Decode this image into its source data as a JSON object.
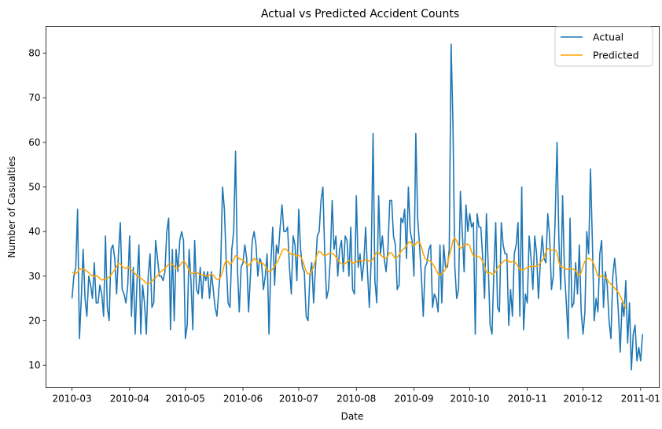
{
  "chart_data": {
    "type": "line",
    "title": "Actual vs Predicted Accident Counts",
    "xlabel": "Date",
    "ylabel": "Number of Casualties",
    "x_start": "2010-03-01",
    "xlim": [
      "2010-02-15",
      "2011-01-11"
    ],
    "ylim": [
      5,
      86
    ],
    "x_ticks": [
      "2010-03",
      "2010-04",
      "2010-05",
      "2010-06",
      "2010-07",
      "2010-08",
      "2010-09",
      "2010-10",
      "2010-11",
      "2010-12",
      "2011-01"
    ],
    "y_ticks": [
      10,
      20,
      30,
      40,
      50,
      60,
      70,
      80
    ],
    "grid": false,
    "legend_position": "top-right",
    "series": [
      {
        "name": "Actual",
        "color": "#1f77b4",
        "values": [
          25,
          30,
          32,
          45,
          16,
          25,
          36,
          25,
          21,
          30,
          28,
          25,
          33,
          24,
          24,
          28,
          26,
          21,
          39,
          23,
          20,
          36,
          37,
          34,
          26,
          35,
          42,
          27,
          26,
          24,
          28,
          39,
          21,
          32,
          17,
          29,
          37,
          17,
          28,
          24,
          17,
          30,
          35,
          23,
          24,
          38,
          34,
          30,
          30,
          29,
          31,
          40,
          43,
          18,
          36,
          20,
          36,
          31,
          38,
          40,
          38,
          16,
          19,
          36,
          29,
          18,
          38,
          27,
          26,
          32,
          25,
          31,
          29,
          31,
          25,
          31,
          27,
          23,
          21,
          27,
          32,
          50,
          45,
          33,
          24,
          23,
          36,
          40,
          58,
          32,
          22,
          32,
          33,
          37,
          34,
          22,
          30,
          38,
          40,
          37,
          30,
          34,
          33,
          27,
          30,
          35,
          17,
          33,
          41,
          28,
          37,
          35,
          41,
          46,
          40,
          40,
          41,
          32,
          26,
          39,
          37,
          29,
          45,
          36,
          32,
          31,
          21,
          20,
          30,
          33,
          24,
          32,
          39,
          40,
          47,
          50,
          35,
          25,
          27,
          34,
          47,
          36,
          39,
          30,
          36,
          38,
          31,
          39,
          38,
          30,
          41,
          27,
          26,
          48,
          32,
          35,
          29,
          33,
          41,
          31,
          23,
          34,
          62,
          29,
          24,
          48,
          35,
          39,
          34,
          31,
          36,
          47,
          47,
          39,
          37,
          27,
          28,
          43,
          42,
          45,
          34,
          50,
          40,
          38,
          30,
          62,
          43,
          37,
          30,
          21,
          32,
          33,
          36,
          37,
          23,
          26,
          25,
          22,
          37,
          24,
          37,
          32,
          32,
          36,
          82,
          64,
          32,
          25,
          27,
          49,
          40,
          31,
          46,
          40,
          44,
          41,
          42,
          17,
          44,
          41,
          41,
          34,
          25,
          44,
          32,
          19,
          17,
          31,
          42,
          23,
          22,
          42,
          37,
          35,
          35,
          19,
          27,
          21,
          35,
          37,
          42,
          21,
          50,
          18,
          26,
          24,
          39,
          34,
          27,
          39,
          35,
          25,
          33,
          39,
          34,
          33,
          44,
          39,
          27,
          30,
          43,
          60,
          38,
          27,
          48,
          31,
          24,
          16,
          43,
          23,
          24,
          33,
          26,
          37,
          22,
          17,
          22,
          40,
          35,
          54,
          38,
          20,
          25,
          22,
          35,
          38,
          23,
          31,
          28,
          20,
          16,
          30,
          34,
          29,
          22,
          13,
          24,
          21,
          29,
          15,
          24,
          9,
          17,
          19,
          11,
          14,
          11,
          17
        ]
      },
      {
        "name": "Predicted",
        "color": "#ffa500",
        "values": [
          30.9,
          30.7,
          30.6,
          30.9,
          31.7,
          31.5,
          31.6,
          31.4,
          31.1,
          30.8,
          30.3,
          30.1,
          29.9,
          30.1,
          29.9,
          29.5,
          29.1,
          29.3,
          29.3,
          29.5,
          29.8,
          30.3,
          30.9,
          31.4,
          32.2,
          32.9,
          32.7,
          32.2,
          31.9,
          31.7,
          32.1,
          31.8,
          31.4,
          31.0,
          30.6,
          30.0,
          29.7,
          29.6,
          29.2,
          28.9,
          28.3,
          28.3,
          28.5,
          28.9,
          29.4,
          29.6,
          30.1,
          30.7,
          31.1,
          31.4,
          31.7,
          32.2,
          32.7,
          32.8,
          32.7,
          32.2,
          31.7,
          31.8,
          32.4,
          33.0,
          33.4,
          33.0,
          32.2,
          31.3,
          30.7,
          30.6,
          30.8,
          30.9,
          30.6,
          30.3,
          30.3,
          30.2,
          30.1,
          30.0,
          30.2,
          30.5,
          30.2,
          29.7,
          29.3,
          29.3,
          29.8,
          31.0,
          32.6,
          33.6,
          33.2,
          32.6,
          33.0,
          33.8,
          34.6,
          34.4,
          33.9,
          33.8,
          33.6,
          33.2,
          32.7,
          32.3,
          32.9,
          33.4,
          34.0,
          33.6,
          33.1,
          33.0,
          33.0,
          32.8,
          32.3,
          31.5,
          31.0,
          31.2,
          31.6,
          32.2,
          32.9,
          33.6,
          34.6,
          35.6,
          36.1,
          36.1,
          35.7,
          35.2,
          34.9,
          35.0,
          34.7,
          34.5,
          34.7,
          34.4,
          33.6,
          32.3,
          31.1,
          30.5,
          30.6,
          31.2,
          32.1,
          33.6,
          35.0,
          35.6,
          35.3,
          34.8,
          34.6,
          34.8,
          35.0,
          35.2,
          35.1,
          34.8,
          34.3,
          33.7,
          33.1,
          32.8,
          32.7,
          32.8,
          33.2,
          33.6,
          33.4,
          33.0,
          32.9,
          33.2,
          33.6,
          33.5,
          33.3,
          33.4,
          33.7,
          33.6,
          33.3,
          33.3,
          33.9,
          34.7,
          35.4,
          35.2,
          34.8,
          34.4,
          34.0,
          34.0,
          34.6,
          35.3,
          35.2,
          34.5,
          34.0,
          34.2,
          34.8,
          35.5,
          36.0,
          36.3,
          36.8,
          37.6,
          37.7,
          37.2,
          36.8,
          37.2,
          37.7,
          37.6,
          36.6,
          35.0,
          34.0,
          33.6,
          33.5,
          33.3,
          32.8,
          32.2,
          31.3,
          30.5,
          30.3,
          30.5,
          31.0,
          31.6,
          32.8,
          34.6,
          36.0,
          38.0,
          38.6,
          37.9,
          36.9,
          36.2,
          36.6,
          36.9,
          37.1,
          37.2,
          36.8,
          35.5,
          34.5,
          34.6,
          34.5,
          34.3,
          34.0,
          33.4,
          32.2,
          30.9,
          30.6,
          30.8,
          30.4,
          30.5,
          31.1,
          31.8,
          32.4,
          32.8,
          33.2,
          33.6,
          33.7,
          33.3,
          33.1,
          33.3,
          33.2,
          32.9,
          32.1,
          31.5,
          31.4,
          31.4,
          31.7,
          31.9,
          32.1,
          32.2,
          32.2,
          32.2,
          32.2,
          32.5,
          33.0,
          33.5,
          34.2,
          35.4,
          36.2,
          36.0,
          35.8,
          35.9,
          35.9,
          35.3,
          33.1,
          32.1,
          32.0,
          31.8,
          31.5,
          31.6,
          31.7,
          31.7,
          31.5,
          31.3,
          30.5,
          30.1,
          30.8,
          32.3,
          33.3,
          33.8,
          34.0,
          33.8,
          33.4,
          32.5,
          31.3,
          30.0,
          29.8,
          30.1,
          30.1,
          29.7,
          29.3,
          28.6,
          28.2,
          27.8,
          27.3,
          26.8,
          26.3,
          25.6,
          24.6,
          23.8,
          22.8
        ]
      }
    ]
  }
}
